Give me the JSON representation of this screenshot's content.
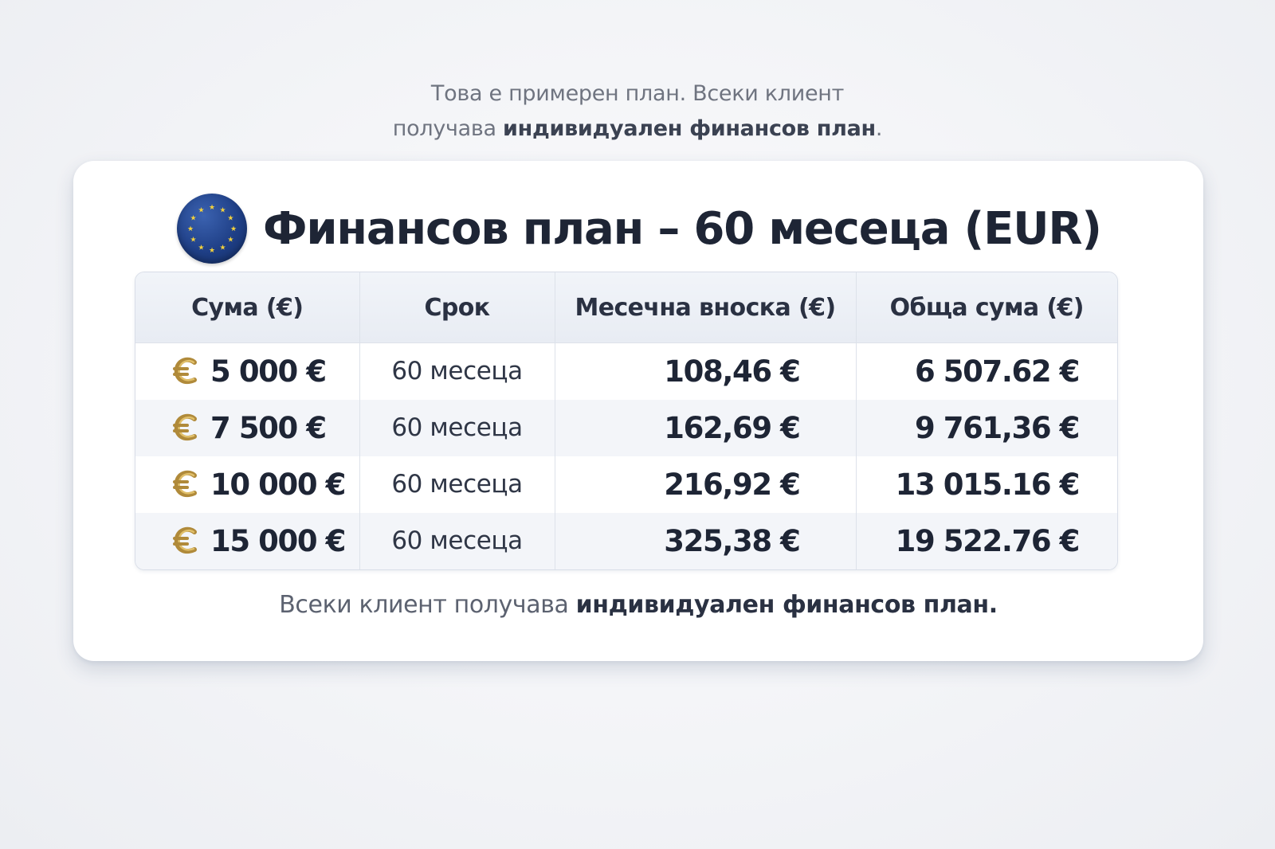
{
  "intro": {
    "line1": "Това е примерен план. Всеки клиент",
    "line2_prefix": "получава ",
    "line2_bold": "индивидуален финансов план",
    "line2_suffix": "."
  },
  "card": {
    "title": "Финансов план – 60 месеца (EUR)",
    "icon": "eu-flag-icon",
    "table": {
      "headers": [
        "Сума (€)",
        "Срок",
        "Месечна вноска (€)",
        "Обща сума (€)"
      ],
      "rows": [
        {
          "amount": "5 000 €",
          "term": "60 месеца",
          "monthly": "108,46 €",
          "total": "6 507.62 €"
        },
        {
          "amount": "7 500 €",
          "term": "60 месеца",
          "monthly": "162,69 €",
          "total": "9 761,36 €"
        },
        {
          "amount": "10 000 €",
          "term": "60 месеца",
          "monthly": "216,92 €",
          "total": "13 015.16 €"
        },
        {
          "amount": "15 000 €",
          "term": "60 месеца",
          "monthly": "325,38 €",
          "total": "19 522.76 €"
        }
      ]
    },
    "footer": {
      "prefix": "Всеки клиент получава ",
      "bold": "индивидуален финансов план."
    }
  },
  "colors": {
    "title_text": "#1e2535",
    "eu_blue": "#1f3f86",
    "eu_star": "#f4d23c",
    "coin_gold": "#c9a04a"
  }
}
